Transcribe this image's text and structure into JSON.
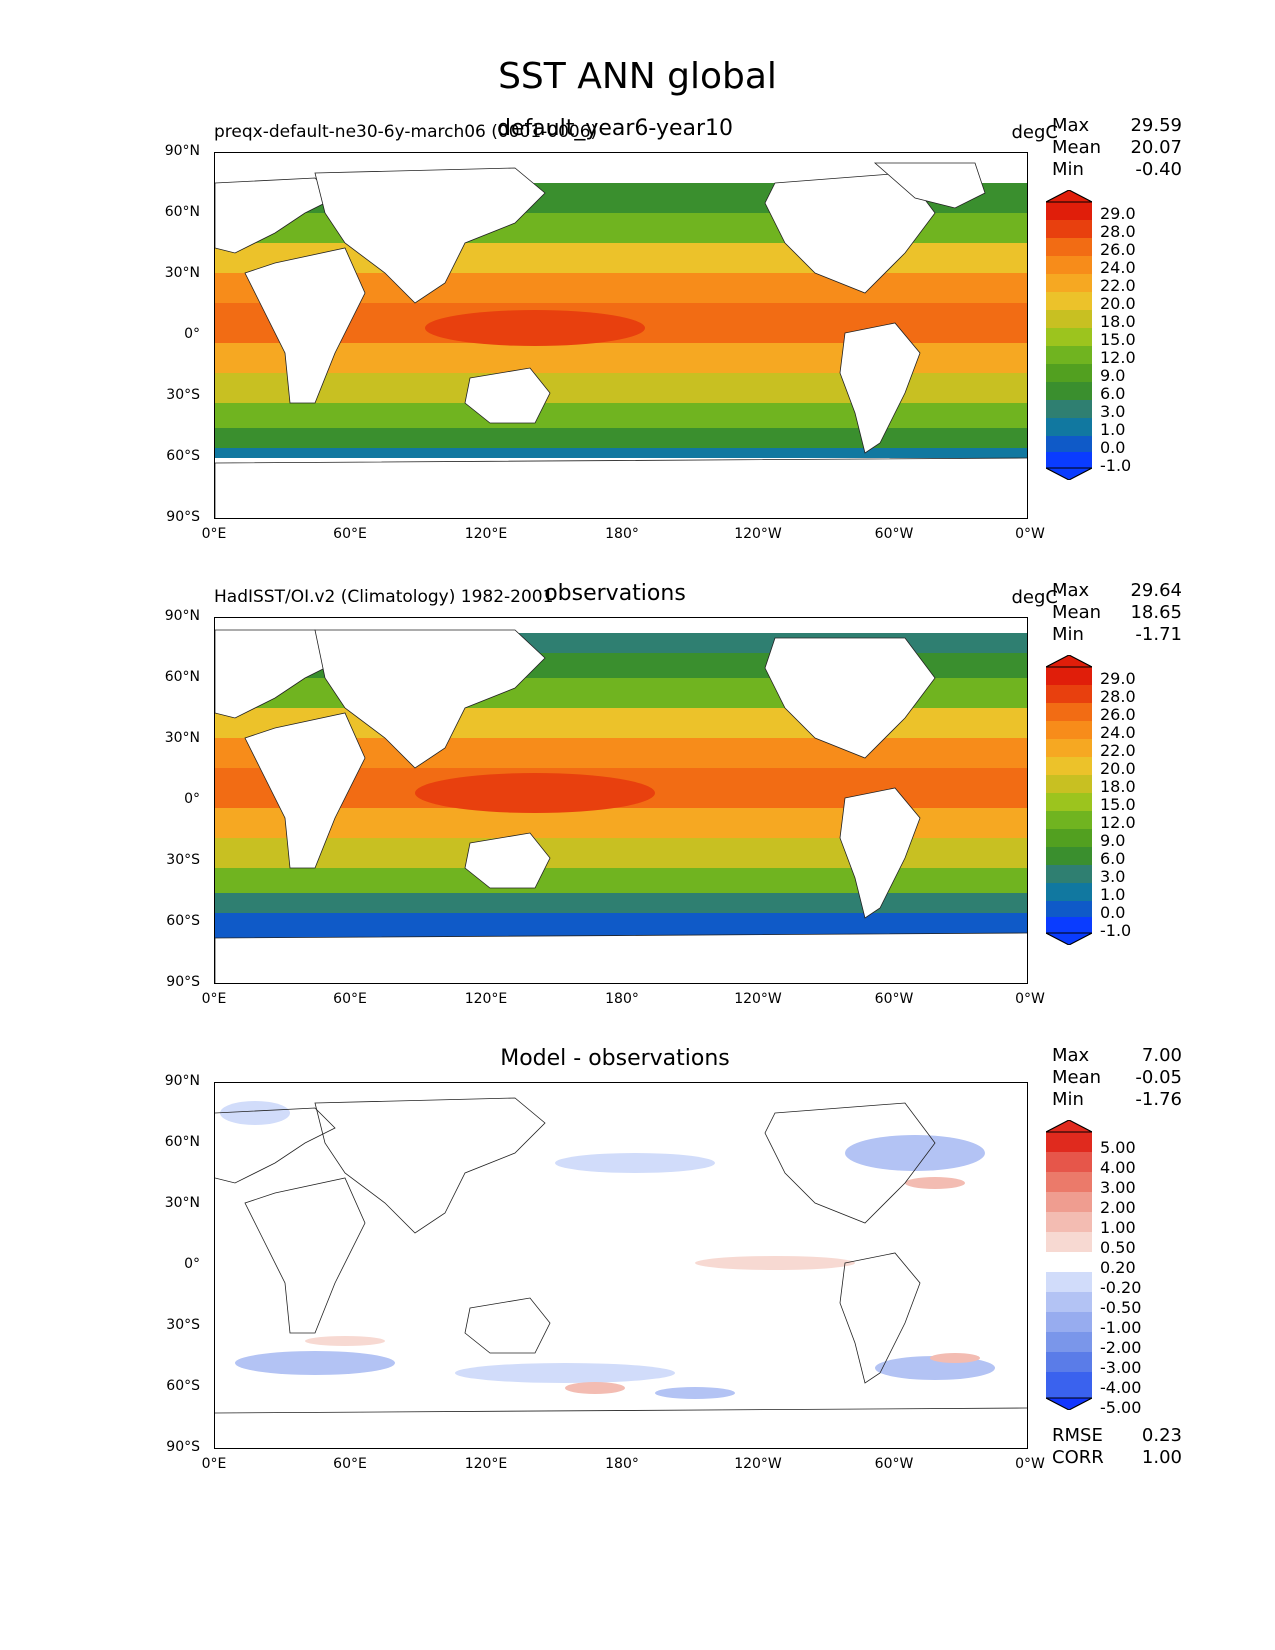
{
  "figure": {
    "title": "SST ANN global"
  },
  "axes": {
    "yticks": [
      "90°N",
      "60°N",
      "30°N",
      "0°",
      "30°S",
      "60°S",
      "90°S"
    ],
    "xticks": [
      "0°E",
      "60°E",
      "120°E",
      "180°",
      "120°W",
      "60°W",
      "0°W"
    ]
  },
  "colors": {
    "sst_scale": [
      "#0a3cff",
      "#0f5ac8",
      "#1178a0",
      "#2f7f71",
      "#3a8f2e",
      "#52a020",
      "#70b420",
      "#9cc41e",
      "#c8c022",
      "#ecc22a",
      "#f6a822",
      "#f78c1a",
      "#f26c14",
      "#e8400e",
      "#e01e0a"
    ],
    "diff_scale": [
      "#1236ff",
      "#3a62ee",
      "#5a7ce8",
      "#7a96ea",
      "#97acef",
      "#b3c3f4",
      "#d1dcfa",
      "#ffffff",
      "#f7d9d2",
      "#f3bcb2",
      "#ef9d90",
      "#eb7a6a",
      "#e6564a",
      "#e02a1e"
    ]
  },
  "panels": [
    {
      "key": "test",
      "left_label": "preqx-default-ne30-6y-march06 (0001-0006)",
      "center_label": "default_year6-year10",
      "unit_label": "degC",
      "stats": [
        {
          "label": "Max",
          "value": "29.59"
        },
        {
          "label": "Mean",
          "value": "20.07"
        },
        {
          "label": "Min",
          "value": "-0.40"
        }
      ],
      "colorbar_levels": [
        "29.0",
        "28.0",
        "26.0",
        "24.0",
        "22.0",
        "20.0",
        "18.0",
        "15.0",
        "12.0",
        "9.0",
        "6.0",
        "3.0",
        "1.0",
        "0.0",
        "-1.0"
      ]
    },
    {
      "key": "ref",
      "left_label": "HadISST/OI.v2 (Climatology) 1982-2001",
      "center_label": "observations",
      "unit_label": "degC",
      "stats": [
        {
          "label": "Max",
          "value": "29.64"
        },
        {
          "label": "Mean",
          "value": "18.65"
        },
        {
          "label": "Min",
          "value": "-1.71"
        }
      ],
      "colorbar_levels": [
        "29.0",
        "28.0",
        "26.0",
        "24.0",
        "22.0",
        "20.0",
        "18.0",
        "15.0",
        "12.0",
        "9.0",
        "6.0",
        "3.0",
        "1.0",
        "0.0",
        "-1.0"
      ]
    },
    {
      "key": "diff",
      "left_label": "",
      "center_label": "Model - observations",
      "unit_label": "",
      "stats": [
        {
          "label": "Max",
          "value": "7.00"
        },
        {
          "label": "Mean",
          "value": "-0.05"
        },
        {
          "label": "Min",
          "value": "-1.76"
        }
      ],
      "colorbar_levels": [
        "5.00",
        "4.00",
        "3.00",
        "2.00",
        "1.00",
        "0.50",
        "0.20",
        "-0.20",
        "-0.50",
        "-1.00",
        "-2.00",
        "-3.00",
        "-4.00",
        "-5.00"
      ],
      "footer_stats": [
        {
          "label": "RMSE",
          "value": "0.23"
        },
        {
          "label": "CORR",
          "value": "1.00"
        }
      ]
    }
  ]
}
